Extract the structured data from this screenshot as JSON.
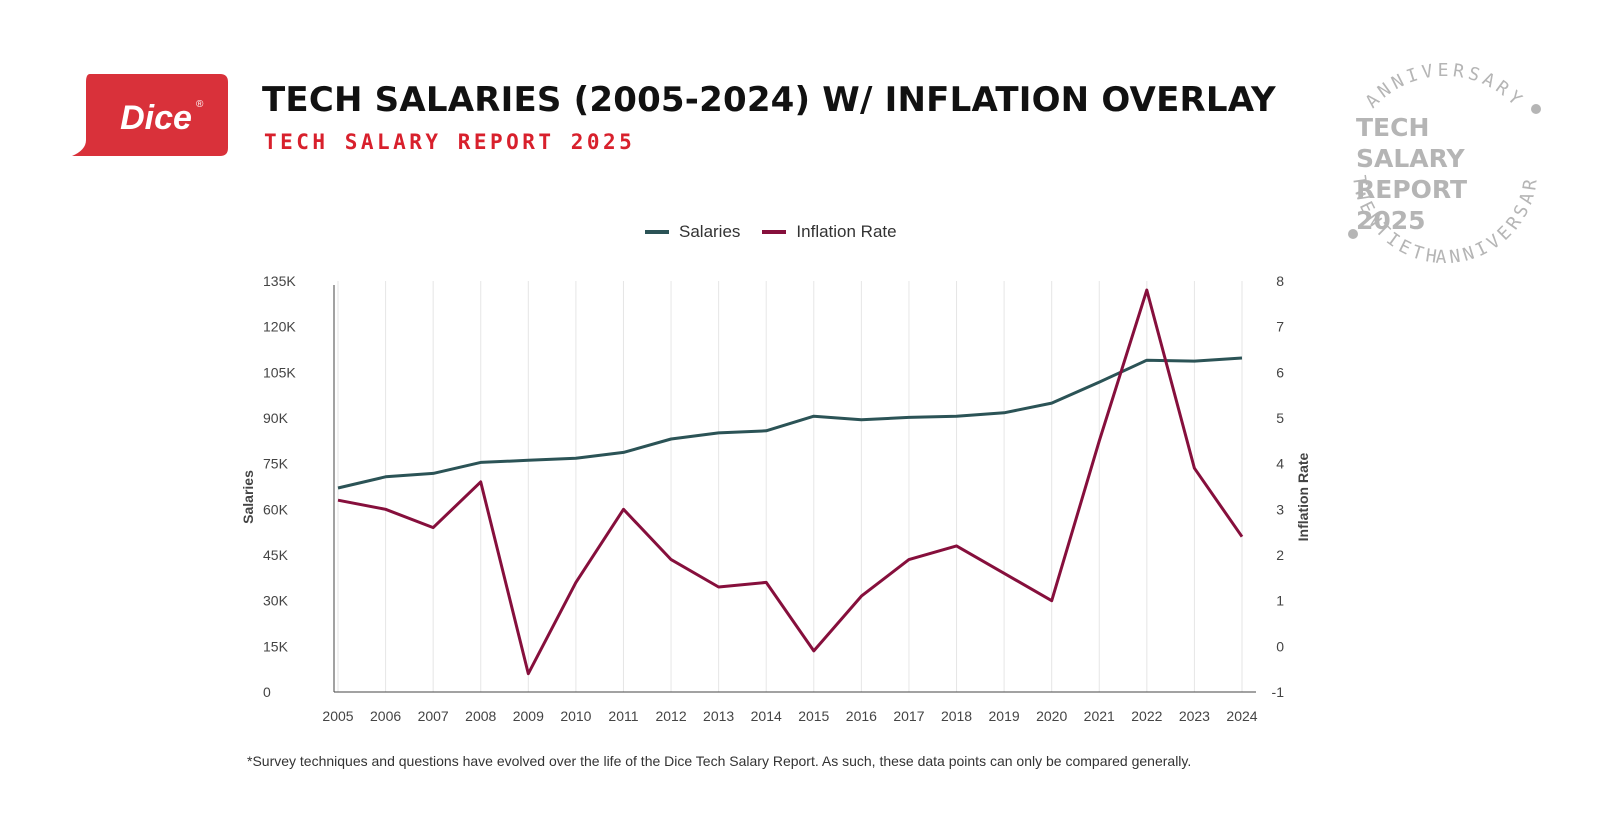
{
  "brand": {
    "logo_text": "Dice",
    "registered_mark": "®",
    "logo_color": "#d9313a"
  },
  "header": {
    "title": "TECH SALARIES (2005-2024) W/ INFLATION OVERLAY",
    "subtitle": "TECH SALARY REPORT 2025",
    "subtitle_color": "#d8202c"
  },
  "badge": {
    "center_lines": [
      "TECH",
      "SALARY",
      "REPORT",
      "2025"
    ],
    "ring_text_top": "ANNIVERSARY",
    "ring_text_bottom": "ANNIVERSARY",
    "ring_text_left": "TWENTIETH",
    "ring_text_right": "TWENTIETH",
    "color": "#b5b5b5"
  },
  "chart_data": {
    "type": "line",
    "title": "",
    "xlabel": "",
    "ylabel": "Salaries",
    "y2label": "Inflation Rate",
    "x": [
      "2005",
      "2006",
      "2007",
      "2008",
      "2009",
      "2010",
      "2011",
      "2012",
      "2013",
      "2014",
      "2015",
      "2016",
      "2017",
      "2018",
      "2019",
      "2020",
      "2021",
      "2022",
      "2023",
      "2024"
    ],
    "ylim": [
      0,
      135000
    ],
    "y2lim": [
      -1,
      8
    ],
    "y_ticks": [
      0,
      15000,
      30000,
      45000,
      60000,
      75000,
      90000,
      105000,
      120000,
      135000
    ],
    "y_tick_labels": [
      "0",
      "15K",
      "30K",
      "45K",
      "60K",
      "75K",
      "90K",
      "105K",
      "120K",
      "135K"
    ],
    "y2_ticks": [
      -1,
      0,
      1,
      2,
      3,
      4,
      5,
      6,
      7,
      8
    ],
    "y2_tick_labels": [
      "-1",
      "0",
      "1",
      "2",
      "3",
      "4",
      "5",
      "6",
      "7",
      "8"
    ],
    "grid": {
      "vertical": true,
      "horizontal": false
    },
    "legend_position": "top-center",
    "series": [
      {
        "name": "Salaries",
        "axis": "left",
        "color": "#2b5356",
        "values": [
          67000,
          70700,
          71800,
          75400,
          76100,
          76800,
          78700,
          83100,
          85100,
          85800,
          90600,
          89400,
          90200,
          90600,
          91700,
          94900,
          101800,
          109000,
          108700,
          109700
        ]
      },
      {
        "name": "Inflation Rate",
        "axis": "right",
        "color": "#860f3c",
        "values": [
          3.2,
          3.0,
          2.6,
          3.6,
          -0.6,
          1.4,
          3.0,
          1.9,
          1.3,
          1.4,
          -0.1,
          1.1,
          1.9,
          2.2,
          1.6,
          1.0,
          4.5,
          7.8,
          3.9,
          2.4
        ]
      }
    ]
  },
  "footnote": "*Survey techniques and questions have evolved over the life of the Dice Tech Salary Report. As such, these data points can only be compared generally."
}
